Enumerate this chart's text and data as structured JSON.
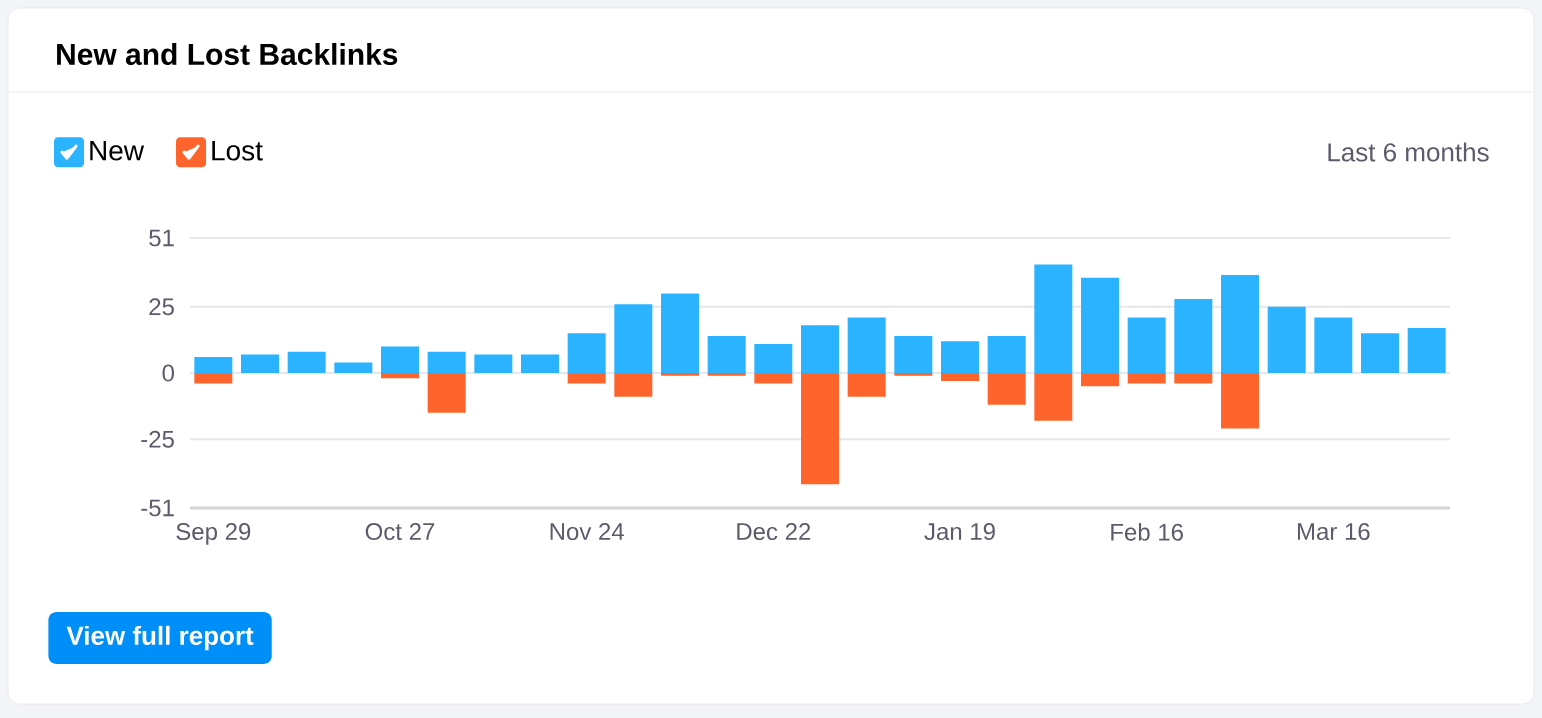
{
  "chart_data": {
    "type": "bar",
    "title": "New and Lost Backlinks",
    "categories": [
      "Sep 29",
      null,
      null,
      null,
      "Oct 27",
      null,
      null,
      null,
      "Nov 24",
      null,
      null,
      null,
      "Dec 22",
      null,
      null,
      null,
      "Jan 19",
      null,
      null,
      null,
      "Feb 16",
      null,
      null,
      null,
      "Mar 16",
      null,
      null
    ],
    "series": [
      {
        "name": "New",
        "color": "#2bb3ff",
        "values": [
          6,
          7,
          8,
          4,
          10,
          8,
          7,
          7,
          15,
          26,
          30,
          14,
          11,
          18,
          21,
          14,
          12,
          14,
          41,
          36,
          21,
          28,
          37,
          25,
          21,
          15,
          17
        ]
      },
      {
        "name": "Lost",
        "color": "#ff642d",
        "values": [
          -4,
          0,
          0,
          0,
          -2,
          -15,
          0,
          0,
          -4,
          -9,
          -1,
          -1,
          -4,
          -42,
          -9,
          -1,
          -3,
          -12,
          -18,
          -5,
          -4,
          -4,
          -21,
          0,
          0,
          0,
          0
        ]
      }
    ],
    "stacked": true,
    "ylim": [
      -51,
      51
    ],
    "yticks": [
      51,
      25,
      0,
      -25,
      -51
    ],
    "grid": "y",
    "legend": "top left",
    "annotations": [
      "Last 6 months",
      "View full report"
    ]
  }
}
